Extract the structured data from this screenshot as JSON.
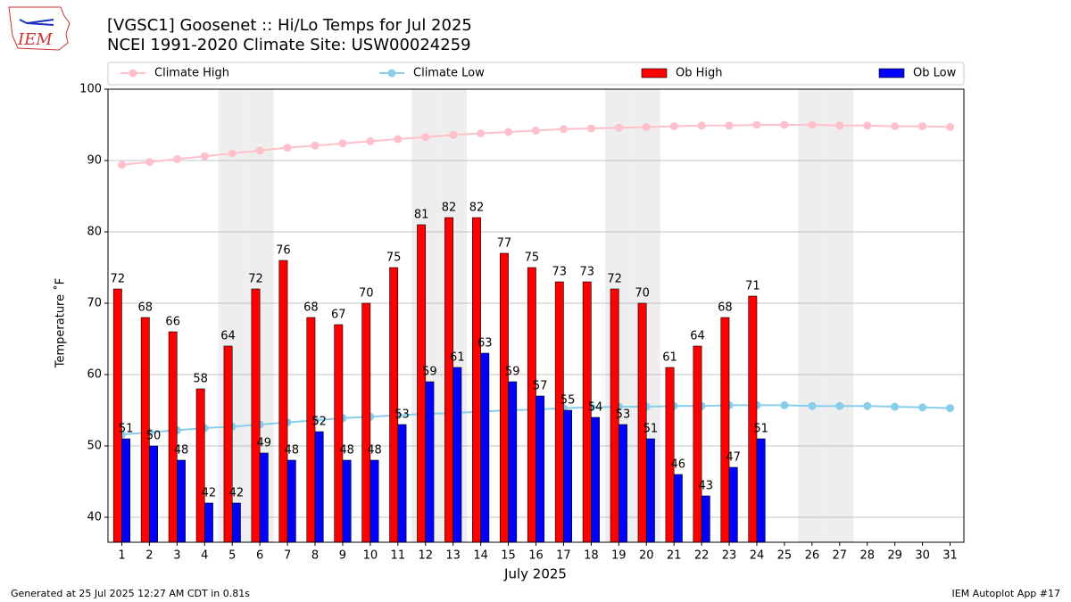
{
  "chart_data": {
    "type": "bar",
    "title": "[VGSC1] Goosenet :: Hi/Lo Temps for Jul 2025",
    "subtitle": "NCEI 1991-2020 Climate Site: USW00024259",
    "logo_text": "IEM",
    "y_label": "Temperature ˚F",
    "x_label": "July 2025",
    "footer_left": "Generated at 25 Jul 2025 12:27 AM CDT in 0.81s",
    "footer_right": "IEM Autoplot App #17",
    "x": [
      1,
      2,
      3,
      4,
      5,
      6,
      7,
      8,
      9,
      10,
      11,
      12,
      13,
      14,
      15,
      16,
      17,
      18,
      19,
      20,
      21,
      22,
      23,
      24,
      25,
      26,
      27,
      28,
      29,
      30,
      31
    ],
    "xlim": [
      0.5,
      31.5
    ],
    "xticks": [
      1,
      2,
      3,
      4,
      5,
      6,
      7,
      8,
      9,
      10,
      11,
      12,
      13,
      14,
      15,
      16,
      17,
      18,
      19,
      20,
      21,
      22,
      23,
      24,
      25,
      26,
      27,
      28,
      29,
      30,
      31
    ],
    "ylim": [
      36.5,
      100
    ],
    "yticks": [
      40,
      50,
      60,
      70,
      80,
      90,
      100
    ],
    "grid": true,
    "shaded_days": [
      5,
      6,
      12,
      13,
      19,
      20,
      26,
      27
    ],
    "series": [
      {
        "name": "Climate High",
        "color": "#ffc0cb",
        "style": "line",
        "values": [
          89.4,
          89.8,
          90.2,
          90.6,
          91.0,
          91.4,
          91.8,
          92.1,
          92.4,
          92.7,
          93.0,
          93.3,
          93.6,
          93.8,
          94.0,
          94.2,
          94.4,
          94.5,
          94.6,
          94.7,
          94.8,
          94.9,
          94.9,
          95.0,
          95.0,
          95.0,
          94.9,
          94.9,
          94.8,
          94.8,
          94.7
        ]
      },
      {
        "name": "Climate Low",
        "color": "#87ceeb",
        "style": "line",
        "values": [
          51.6,
          51.9,
          52.2,
          52.5,
          52.7,
          53.0,
          53.3,
          53.6,
          53.9,
          54.1,
          54.3,
          54.5,
          54.6,
          54.8,
          55.0,
          55.1,
          55.3,
          55.4,
          55.5,
          55.5,
          55.6,
          55.6,
          55.7,
          55.7,
          55.7,
          55.6,
          55.6,
          55.6,
          55.5,
          55.4,
          55.3
        ]
      },
      {
        "name": "Ob High",
        "color": "#ff0000",
        "style": "bar",
        "values": [
          72,
          68,
          66,
          58,
          64,
          72,
          76,
          68,
          67,
          70,
          75,
          81,
          82,
          82,
          77,
          75,
          73,
          73,
          72,
          70,
          61,
          64,
          68,
          71,
          null,
          null,
          null,
          null,
          null,
          null,
          null
        ]
      },
      {
        "name": "Ob Low",
        "color": "#0000ff",
        "style": "bar",
        "values": [
          51,
          50,
          48,
          42,
          42,
          49,
          48,
          52,
          48,
          48,
          53,
          59,
          61,
          63,
          59,
          57,
          55,
          54,
          53,
          51,
          46,
          43,
          47,
          51,
          null,
          null,
          null,
          null,
          null,
          null,
          null
        ]
      }
    ]
  }
}
